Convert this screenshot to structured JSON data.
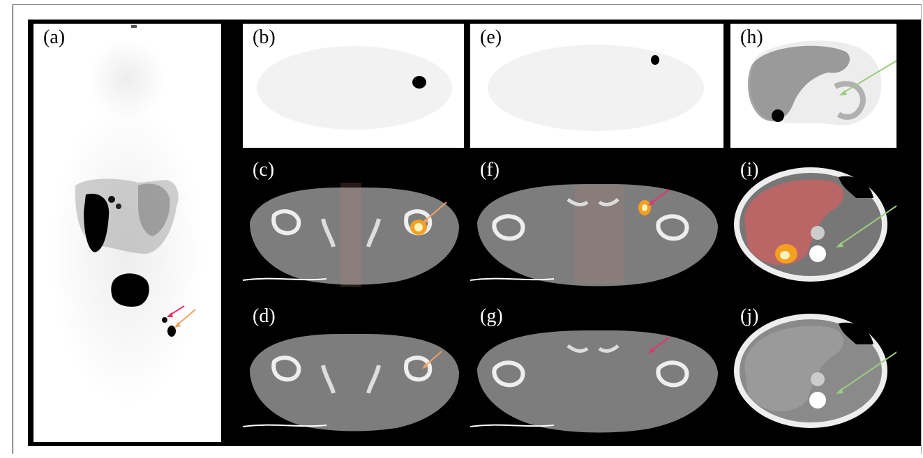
{
  "figure": {
    "panels": [
      {
        "id": "a",
        "label": "(a)",
        "modality": "PET MIP (coronal)"
      },
      {
        "id": "b",
        "label": "(b)",
        "modality": "PET axial"
      },
      {
        "id": "c",
        "label": "(c)",
        "modality": "PET/CT fusion axial"
      },
      {
        "id": "d",
        "label": "(d)",
        "modality": "CT axial"
      },
      {
        "id": "e",
        "label": "(e)",
        "modality": "PET axial"
      },
      {
        "id": "f",
        "label": "(f)",
        "modality": "PET/CT fusion axial"
      },
      {
        "id": "g",
        "label": "(g)",
        "modality": "CT axial"
      },
      {
        "id": "h",
        "label": "(h)",
        "modality": "PET axial"
      },
      {
        "id": "i",
        "label": "(i)",
        "modality": "PET/CT fusion axial"
      },
      {
        "id": "j",
        "label": "(j)",
        "modality": "CT axial"
      }
    ],
    "arrow_colors": {
      "pink": "#e8326a",
      "orange": "#f0a060",
      "green": "#9ccc7e"
    }
  }
}
